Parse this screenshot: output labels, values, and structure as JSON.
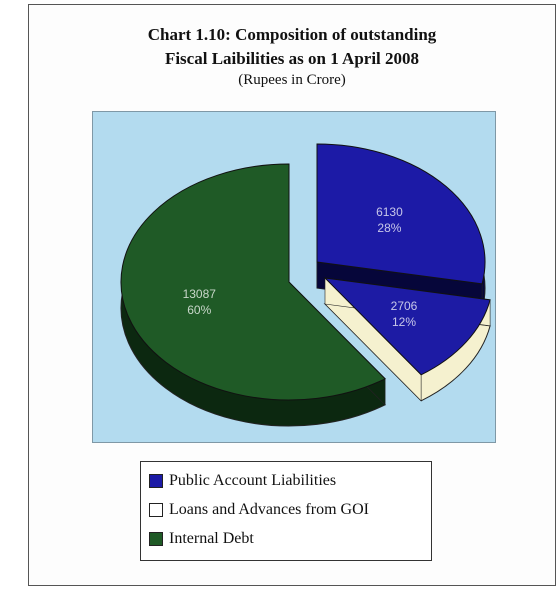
{
  "chart_data": {
    "type": "pie",
    "title": "Chart 1.10: Composition of outstanding",
    "title_line2": "Fiscal Laibilities as on 1 April 2008",
    "subtitle": "(Rupees in Crore)",
    "legend_position": "bottom",
    "slices": [
      {
        "name": "Public Account Liabilities",
        "value": 6130,
        "value_label": "6130",
        "pct_label": "28%",
        "color": "#1c1aa6",
        "side": "#06063a",
        "exploded": true
      },
      {
        "name": "Loans and Advances from GOI",
        "value": 2706,
        "value_label": "2706",
        "pct_label": "12%",
        "color": "#1d1ba4",
        "side": "#f5f1cf",
        "exploded": true
      },
      {
        "name": "Internal Debt",
        "value": 13087,
        "value_label": "13087",
        "pct_label": "60%",
        "color": "#1f5a26",
        "side": "#0c2810",
        "exploded": false
      }
    ],
    "legend_colors": [
      "#1c1aa6",
      "#ffffff",
      "#1f5a26"
    ]
  }
}
